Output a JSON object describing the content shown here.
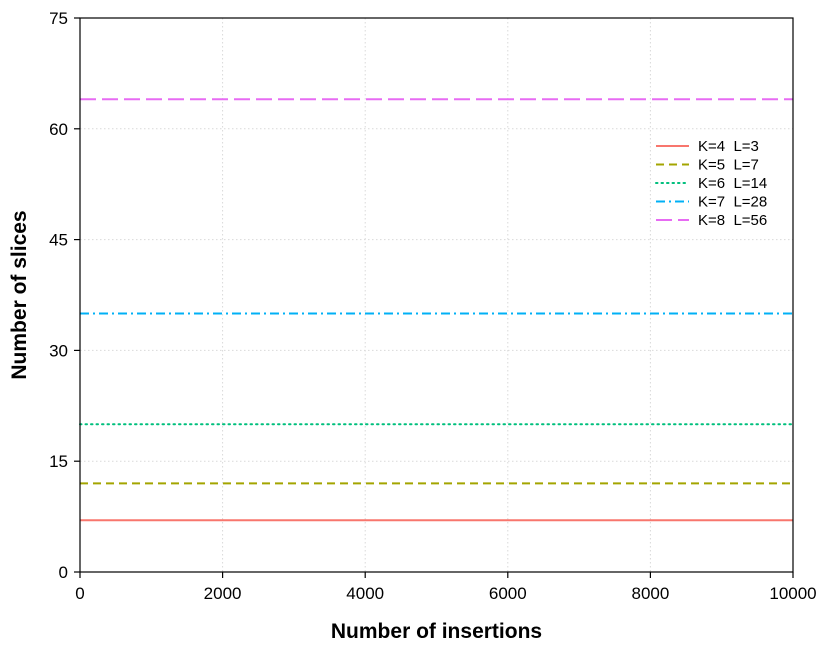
{
  "chart_data": {
    "type": "line",
    "title": "",
    "xlabel": "Number of insertions",
    "ylabel": "Number of slices",
    "xlim": [
      0,
      10000
    ],
    "ylim": [
      0,
      75
    ],
    "x_ticks": [
      0,
      2000,
      4000,
      6000,
      8000,
      10000
    ],
    "y_ticks": [
      0,
      15,
      30,
      45,
      60,
      75
    ],
    "x_tick_labels": [
      "0",
      "2000",
      "4000",
      "6000",
      "8000",
      "10000"
    ],
    "y_tick_labels": [
      "0",
      "15",
      "30",
      "45",
      "60",
      "75"
    ],
    "grid": true,
    "legend_position": "right",
    "series": [
      {
        "name": "K=4  L=3",
        "color": "#F8766D",
        "dash": "solid",
        "x": [
          0,
          10000
        ],
        "y": [
          7,
          7
        ]
      },
      {
        "name": "K=5  L=7",
        "color": "#A3A500",
        "dash": "dashed",
        "x": [
          0,
          10000
        ],
        "y": [
          12,
          12
        ]
      },
      {
        "name": "K=6  L=14",
        "color": "#00BF7D",
        "dash": "dotted",
        "x": [
          0,
          10000
        ],
        "y": [
          20,
          20
        ]
      },
      {
        "name": "K=7  L=28",
        "color": "#00B0F6",
        "dash": "dashdot",
        "x": [
          0,
          10000
        ],
        "y": [
          35,
          35
        ]
      },
      {
        "name": "K=8  L=56",
        "color": "#E76BF3",
        "dash": "longdash",
        "x": [
          0,
          10000
        ],
        "y": [
          64,
          64
        ]
      }
    ]
  }
}
